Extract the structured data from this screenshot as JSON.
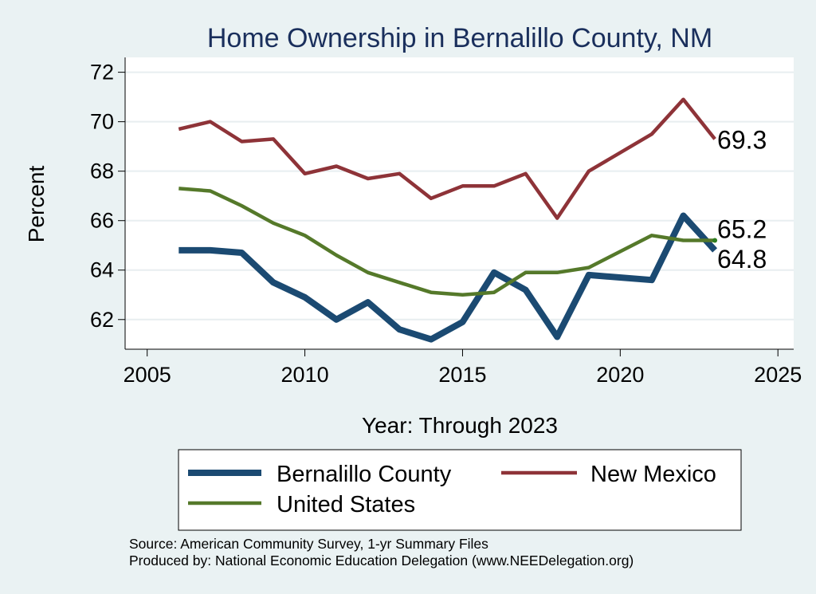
{
  "chart_data": {
    "type": "line",
    "title": "Home Ownership in Bernalillo County, NM",
    "xlabel": "Year: Through 2023",
    "ylabel": "Percent",
    "xlim": [
      2004.3,
      2025.5
    ],
    "ylim": [
      60.8,
      72.6
    ],
    "xticks": [
      2005,
      2010,
      2015,
      2020,
      2025
    ],
    "yticks": [
      62,
      64,
      66,
      68,
      70,
      72
    ],
    "grid": true,
    "legend_position": "bottom",
    "x": [
      2006,
      2007,
      2008,
      2009,
      2010,
      2011,
      2012,
      2013,
      2014,
      2015,
      2016,
      2017,
      2018,
      2019,
      2021,
      2022,
      2023
    ],
    "series": [
      {
        "name": "Bernalillo County",
        "color": "#1b4a72",
        "values": [
          64.8,
          64.8,
          64.7,
          63.5,
          62.9,
          62.0,
          62.7,
          61.6,
          61.2,
          61.9,
          63.9,
          63.2,
          61.3,
          63.8,
          63.6,
          66.2,
          64.8
        ],
        "end_label": "64.8"
      },
      {
        "name": "New Mexico",
        "color": "#8e3338",
        "values": [
          69.7,
          70.0,
          69.2,
          69.3,
          67.9,
          68.2,
          67.7,
          67.9,
          66.9,
          67.4,
          67.4,
          67.9,
          66.1,
          68.0,
          69.5,
          70.9,
          69.3
        ],
        "end_label": "69.3"
      },
      {
        "name": "United States",
        "color": "#55792a",
        "values": [
          67.3,
          67.2,
          66.6,
          65.9,
          65.4,
          64.6,
          63.9,
          63.5,
          63.1,
          63.0,
          63.1,
          63.9,
          63.9,
          64.1,
          65.4,
          65.2,
          65.2
        ],
        "end_label": "65.2",
        "end_marker_color": "#2e7d1f"
      }
    ]
  },
  "notes": {
    "source": "Source: American Community Survey, 1-yr Summary Files",
    "producer": "Produced by: National Economic Education Delegation (www.NEEDelegation.org)"
  }
}
